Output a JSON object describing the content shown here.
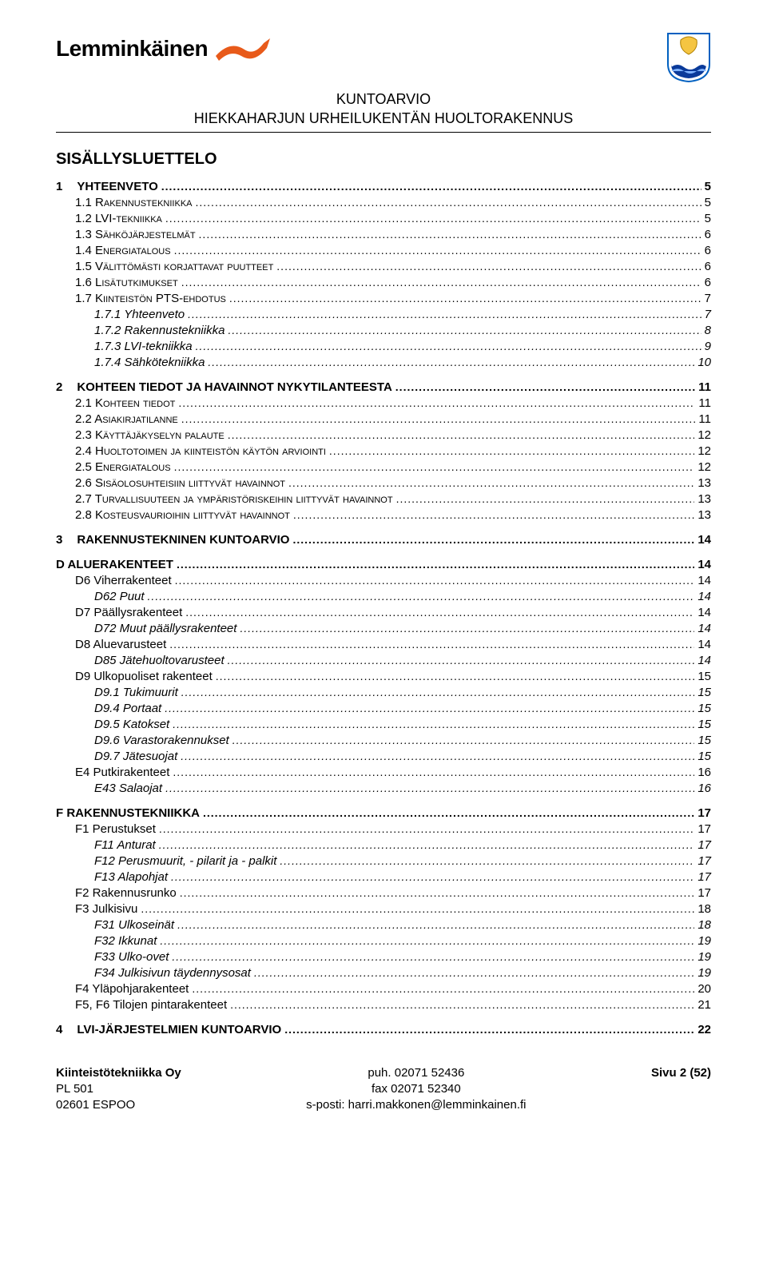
{
  "header": {
    "logo_text": "Lemminkäinen",
    "doc_title_line1": "KUNTOARVIO",
    "doc_title_line2": "HIEKKAHARJUN URHEILUKENTÄN HUOLTORAKENNUS"
  },
  "colors": {
    "logo_orange": "#e85a1a",
    "crest_blue": "#0a3a9a",
    "crest_yellow": "#f5c542",
    "crest_border": "#0060c0"
  },
  "toc_title": "SISÄLLYSLUETTELO",
  "toc": [
    {
      "lvl": 1,
      "num": "1",
      "label": "YHTEENVETO",
      "page": "5"
    },
    {
      "lvl": 2,
      "label": "1.1 Rakennustekniikka",
      "page": "5"
    },
    {
      "lvl": 2,
      "label": "1.2 LVI-tekniikka",
      "page": "5"
    },
    {
      "lvl": 2,
      "label": "1.3 Sähköjärjestelmät",
      "page": "6"
    },
    {
      "lvl": 2,
      "label": "1.4 Energiatalous",
      "page": "6"
    },
    {
      "lvl": 2,
      "label": "1.5 Välittömästi korjattavat puutteet",
      "page": "6"
    },
    {
      "lvl": 2,
      "label": "1.6 Lisätutkimukset",
      "page": "6"
    },
    {
      "lvl": 2,
      "label": "1.7 Kiinteistön PTS-ehdotus",
      "page": "7"
    },
    {
      "lvl": 3,
      "label": "1.7.1 Yhteenveto",
      "page": "7"
    },
    {
      "lvl": 3,
      "label": "1.7.2 Rakennustekniikka",
      "page": "8"
    },
    {
      "lvl": 3,
      "label": "1.7.3 LVI-tekniikka",
      "page": "9"
    },
    {
      "lvl": 3,
      "label": "1.7.4 Sähkötekniikka",
      "page": "10"
    },
    {
      "lvl": 1,
      "num": "2",
      "label": "KOHTEEN TIEDOT JA HAVAINNOT NYKYTILANTEESTA",
      "page": "11"
    },
    {
      "lvl": 2,
      "label": "2.1 Kohteen tiedot",
      "page": "11"
    },
    {
      "lvl": 2,
      "label": "2.2 Asiakirjatilanne",
      "page": "11"
    },
    {
      "lvl": 2,
      "label": "2.3 Käyttäjäkyselyn palaute",
      "page": "12"
    },
    {
      "lvl": 2,
      "label": "2.4 Huoltotoimen ja kiinteistön käytön arviointi",
      "page": "12"
    },
    {
      "lvl": 2,
      "label": "2.5 Energiatalous",
      "page": "12"
    },
    {
      "lvl": 2,
      "label": "2.6 Sisäolosuhteisiin liittyvät havainnot",
      "page": "13"
    },
    {
      "lvl": 2,
      "label": "2.7 Turvallisuuteen ja ympäristöriskeihin liittyvät havainnot",
      "page": "13"
    },
    {
      "lvl": 2,
      "label": "2.8 Kosteusvaurioihin liittyvät havainnot",
      "page": "13"
    },
    {
      "lvl": 1,
      "num": "3",
      "label": "RAKENNUSTEKNINEN KUNTOARVIO",
      "page": "14"
    },
    {
      "lvl": "L",
      "label": "D ALUERAKENTEET",
      "page": "14"
    },
    {
      "lvl": 2,
      "label": "D6 Viherrakenteet",
      "page": "14",
      "plain": true
    },
    {
      "lvl": 3,
      "label": "D62 Puut",
      "page": "14"
    },
    {
      "lvl": 2,
      "label": "D7 Päällysrakenteet",
      "page": "14",
      "plain": true
    },
    {
      "lvl": 3,
      "label": "D72 Muut päällysrakenteet",
      "page": "14"
    },
    {
      "lvl": 2,
      "label": "D8 Aluevarusteet",
      "page": "14",
      "plain": true
    },
    {
      "lvl": 3,
      "label": "D85 Jätehuoltovarusteet",
      "page": "14"
    },
    {
      "lvl": 2,
      "label": "D9 Ulkopuoliset rakenteet",
      "page": "15",
      "plain": true
    },
    {
      "lvl": 3,
      "label": "D9.1 Tukimuurit",
      "page": "15"
    },
    {
      "lvl": 3,
      "label": "D9.4 Portaat",
      "page": "15"
    },
    {
      "lvl": 3,
      "label": "D9.5 Katokset",
      "page": "15"
    },
    {
      "lvl": 3,
      "label": "D9.6 Varastorakennukset",
      "page": "15"
    },
    {
      "lvl": 3,
      "label": "D9.7 Jätesuojat",
      "page": "15"
    },
    {
      "lvl": 2,
      "label": "E4 Putkirakenteet",
      "page": "16",
      "plain": true
    },
    {
      "lvl": 3,
      "label": "E43 Salaojat",
      "page": "16"
    },
    {
      "lvl": "L",
      "label": "F RAKENNUSTEKNIIKKA",
      "page": "17"
    },
    {
      "lvl": 2,
      "label": "F1 Perustukset",
      "page": "17",
      "plain": true
    },
    {
      "lvl": 3,
      "label": "F11 Anturat",
      "page": "17"
    },
    {
      "lvl": 3,
      "label": "F12 Perusmuurit, - pilarit ja - palkit",
      "page": "17"
    },
    {
      "lvl": 3,
      "label": "F13 Alapohjat",
      "page": "17"
    },
    {
      "lvl": 2,
      "label": "F2 Rakennusrunko",
      "page": "17",
      "plain": true
    },
    {
      "lvl": 2,
      "label": "F3 Julkisivu",
      "page": "18",
      "plain": true
    },
    {
      "lvl": 3,
      "label": "F31 Ulkoseinät",
      "page": "18"
    },
    {
      "lvl": 3,
      "label": "F32 Ikkunat",
      "page": "19"
    },
    {
      "lvl": 3,
      "label": "F33 Ulko-ovet",
      "page": "19"
    },
    {
      "lvl": 3,
      "label": "F34 Julkisivun täydennysosat",
      "page": "19"
    },
    {
      "lvl": 2,
      "label": "F4 Yläpohjarakenteet",
      "page": "20",
      "plain": true
    },
    {
      "lvl": 2,
      "label": "F5, F6 Tilojen pintarakenteet",
      "page": "21",
      "plain": true
    },
    {
      "lvl": 1,
      "num": "4",
      "label": "LVI-JÄRJESTELMIEN KUNTOARVIO",
      "page": "22"
    }
  ],
  "footer": {
    "left1": "Kiinteistötekniikka Oy",
    "left2": "PL 501",
    "left3": "02601 ESPOO",
    "mid1": "puh. 02071 52436",
    "mid2": "fax 02071 52340",
    "mid3": "s-posti: harri.makkonen@lemminkainen.fi",
    "right": "Sivu 2 (52)"
  }
}
